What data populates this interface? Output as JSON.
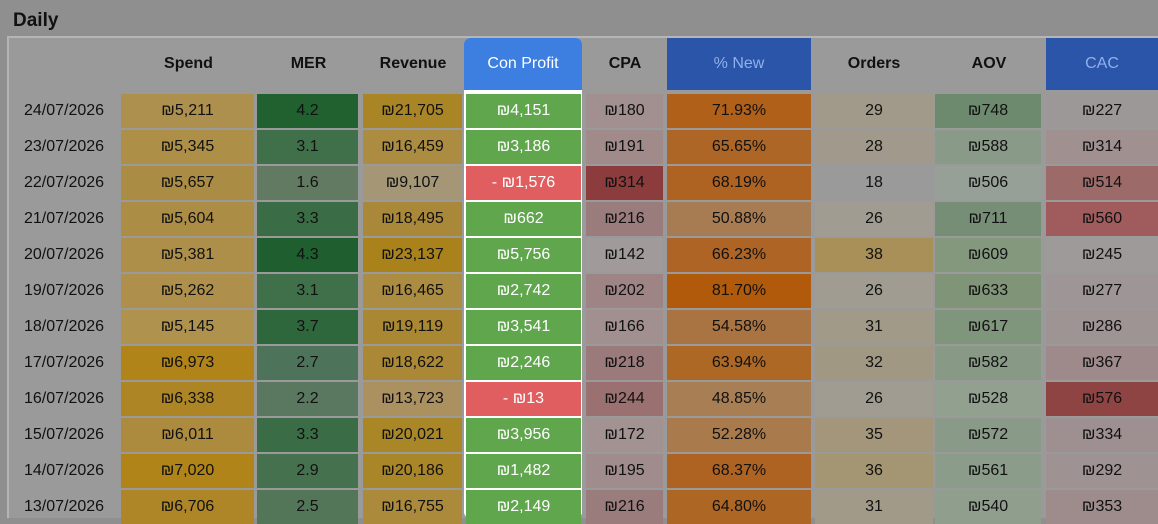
{
  "section_title": "Daily",
  "headers": {
    "spend": "Spend",
    "mer": "MER",
    "revenue": "Revenue",
    "con_profit": "Con Profit",
    "cpa": "CPA",
    "pct_new": "% New",
    "orders": "Orders",
    "aov": "AOV",
    "cac": "CAC"
  },
  "rows": [
    {
      "date": "24/07/2026",
      "spend": "₪5,211",
      "mer": "4.2",
      "revenue": "₪21,705",
      "con_profit": "₪4,151",
      "cpa": "₪180",
      "pct_new": "71.93%",
      "orders": "29",
      "aov": "₪748",
      "cac": "₪227"
    },
    {
      "date": "23/07/2026",
      "spend": "₪5,345",
      "mer": "3.1",
      "revenue": "₪16,459",
      "con_profit": "₪3,186",
      "cpa": "₪191",
      "pct_new": "65.65%",
      "orders": "28",
      "aov": "₪588",
      "cac": "₪314"
    },
    {
      "date": "22/07/2026",
      "spend": "₪5,657",
      "mer": "1.6",
      "revenue": "₪9,107",
      "con_profit": "- ₪1,576",
      "cpa": "₪314",
      "pct_new": "68.19%",
      "orders": "18",
      "aov": "₪506",
      "cac": "₪514"
    },
    {
      "date": "21/07/2026",
      "spend": "₪5,604",
      "mer": "3.3",
      "revenue": "₪18,495",
      "con_profit": "₪662",
      "cpa": "₪216",
      "pct_new": "50.88%",
      "orders": "26",
      "aov": "₪711",
      "cac": "₪560"
    },
    {
      "date": "20/07/2026",
      "spend": "₪5,381",
      "mer": "4.3",
      "revenue": "₪23,137",
      "con_profit": "₪5,756",
      "cpa": "₪142",
      "pct_new": "66.23%",
      "orders": "38",
      "aov": "₪609",
      "cac": "₪245"
    },
    {
      "date": "19/07/2026",
      "spend": "₪5,262",
      "mer": "3.1",
      "revenue": "₪16,465",
      "con_profit": "₪2,742",
      "cpa": "₪202",
      "pct_new": "81.70%",
      "orders": "26",
      "aov": "₪633",
      "cac": "₪277"
    },
    {
      "date": "18/07/2026",
      "spend": "₪5,145",
      "mer": "3.7",
      "revenue": "₪19,119",
      "con_profit": "₪3,541",
      "cpa": "₪166",
      "pct_new": "54.58%",
      "orders": "31",
      "aov": "₪617",
      "cac": "₪286"
    },
    {
      "date": "17/07/2026",
      "spend": "₪6,973",
      "mer": "2.7",
      "revenue": "₪18,622",
      "con_profit": "₪2,246",
      "cpa": "₪218",
      "pct_new": "63.94%",
      "orders": "32",
      "aov": "₪582",
      "cac": "₪367"
    },
    {
      "date": "16/07/2026",
      "spend": "₪6,338",
      "mer": "2.2",
      "revenue": "₪13,723",
      "con_profit": "- ₪13",
      "cpa": "₪244",
      "pct_new": "48.85%",
      "orders": "26",
      "aov": "₪528",
      "cac": "₪576"
    },
    {
      "date": "15/07/2026",
      "spend": "₪6,011",
      "mer": "3.3",
      "revenue": "₪20,021",
      "con_profit": "₪3,956",
      "cpa": "₪172",
      "pct_new": "52.28%",
      "orders": "35",
      "aov": "₪572",
      "cac": "₪334"
    },
    {
      "date": "14/07/2026",
      "spend": "₪7,020",
      "mer": "2.9",
      "revenue": "₪20,186",
      "con_profit": "₪1,482",
      "cpa": "₪195",
      "pct_new": "68.37%",
      "orders": "36",
      "aov": "₪561",
      "cac": "₪292"
    },
    {
      "date": "13/07/2026",
      "spend": "₪6,706",
      "mer": "2.5",
      "revenue": "₪16,755",
      "con_profit": "₪2,149",
      "cpa": "₪216",
      "pct_new": "64.80%",
      "orders": "31",
      "aov": "₪540",
      "cac": "₪353"
    }
  ],
  "colors": {
    "spend": [
      "#ad904d",
      "#ad8f48",
      "#ab8c44",
      "#ac8d46",
      "#ad8f4a",
      "#ae904c",
      "#af924e",
      "#b08418",
      "#ad8524",
      "#ac8b3f",
      "#b08418",
      "#ae8628"
    ],
    "mer": [
      "#20612f",
      "#3f7049",
      "#617a61",
      "#3a6d45",
      "#1f5e2e",
      "#3f7049",
      "#2f673c",
      "#4d745a",
      "#5a7860",
      "#3a6d45",
      "#46714f",
      "#537558"
    ],
    "revenue": [
      "#a98526",
      "#ab8c40",
      "#a59776",
      "#aa883a",
      "#a9821c",
      "#ab8c40",
      "#aa8732",
      "#aa8836",
      "#ab9060",
      "#a98626",
      "#a98628",
      "#ab8a3c"
    ],
    "con_profit": [
      "#5fa64c",
      "#5fa64c",
      "#e05e5f",
      "#5fa64c",
      "#5fa64c",
      "#5fa64c",
      "#5fa64c",
      "#5fa64c",
      "#e05e5f",
      "#5fa64c",
      "#5fa64c",
      "#5fa64c"
    ],
    "cpa": [
      "#a29090",
      "#a08a8a",
      "#8c3c3c",
      "#9b7c7c",
      "#a09a9a",
      "#9e8484",
      "#a29090",
      "#9a7a7a",
      "#9a7070",
      "#a29292",
      "#a08c8c",
      "#9b7c7c"
    ],
    "pct_new": [
      "#b06018",
      "#ad6626",
      "#ae6322",
      "#a87c52",
      "#ad6424",
      "#b25a0c",
      "#aa7442",
      "#ad6826",
      "#a87e54",
      "#a97a4c",
      "#ae6322",
      "#ad6624"
    ],
    "orders": [
      "#a19a8a",
      "#a19a8c",
      "#9a9a9a",
      "#a09c92",
      "#a98f58",
      "#a09c92",
      "#a19a88",
      "#a19884",
      "#a09c92",
      "#a3967a",
      "#a49672",
      "#a19a88"
    ],
    "aov": [
      "#6e8a6e",
      "#8a9a88",
      "#96a096",
      "#768e76",
      "#84987e",
      "#809478",
      "#80967c",
      "#889a86",
      "#92a090",
      "#8a9a88",
      "#8c9c8a",
      "#909e8e"
    ],
    "cac": [
      "#9d9898",
      "#a09090",
      "#9d6a6a",
      "#a05c5c",
      "#9e9a9a",
      "#9e9696",
      "#9e9494",
      "#9e8a8a",
      "#8f4444",
      "#9e9090",
      "#9e9292",
      "#9e8c8c"
    ]
  }
}
